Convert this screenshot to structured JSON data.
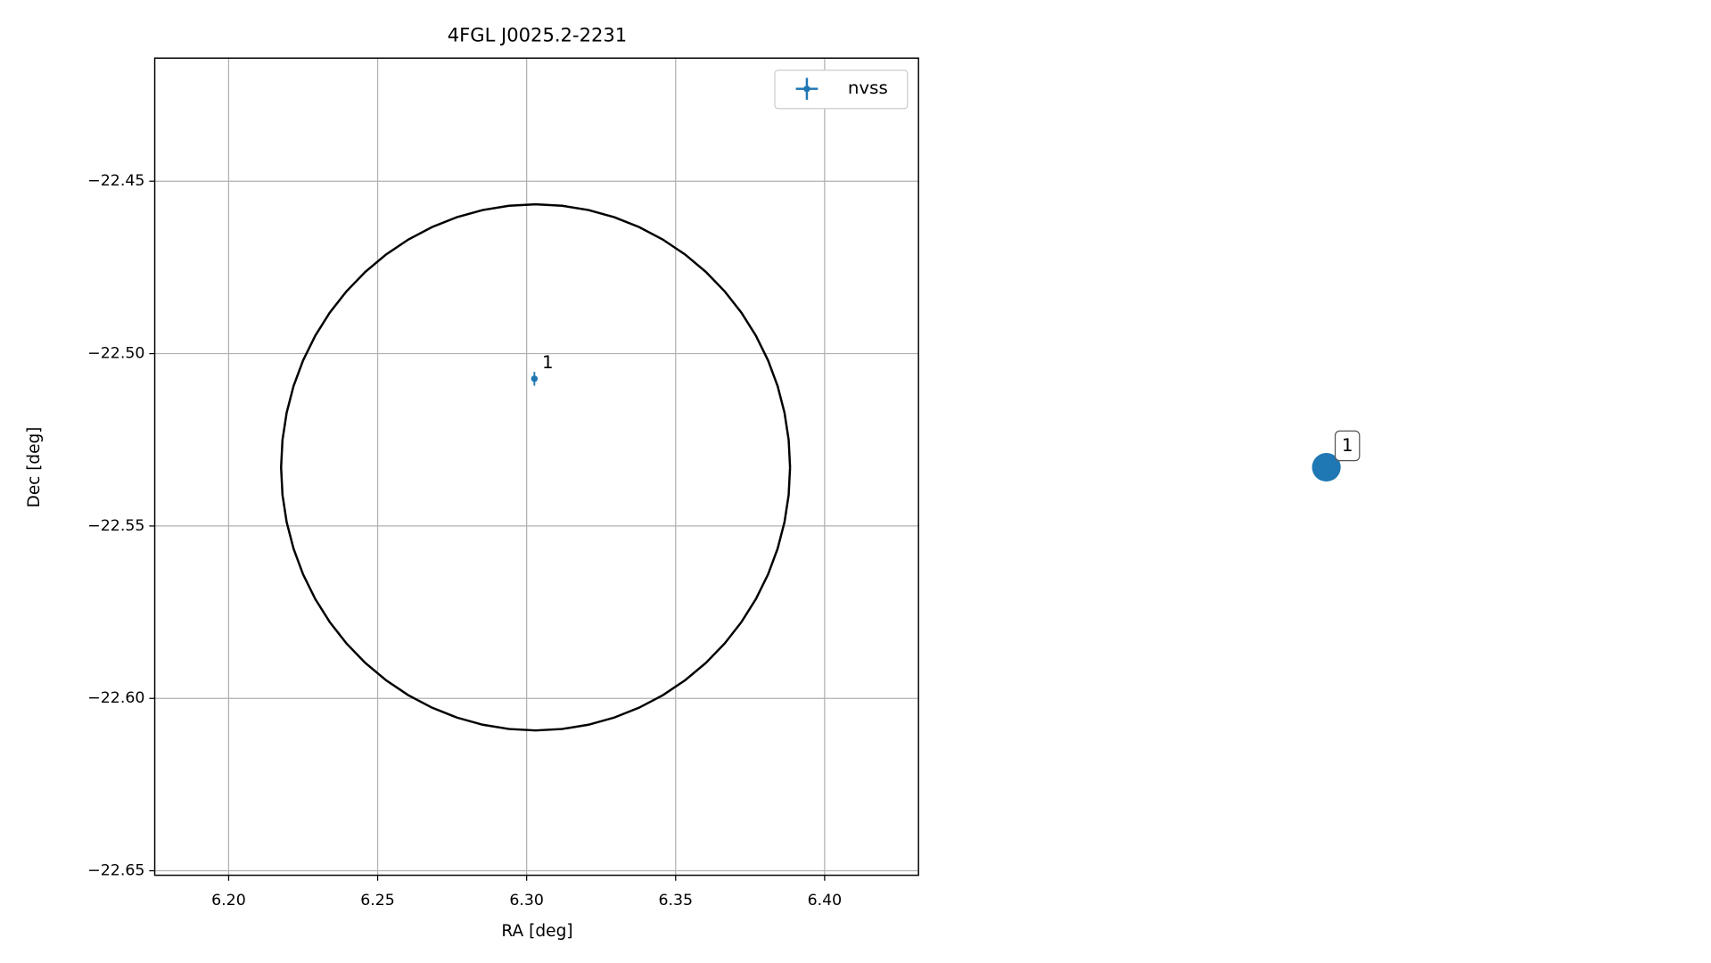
{
  "chart_data": {
    "type": "scatter",
    "title": "4FGL J0025.2-2231",
    "xlabel": "RA [deg]",
    "ylabel": "Dec [deg]",
    "series": [
      {
        "name": "nvss",
        "color": "#1f77b4",
        "x": [
          6.3026
        ],
        "values": [
          -22.5073
        ],
        "xerr": [
          0.001
        ],
        "yerr": [
          0.002
        ],
        "point_labels": [
          "1"
        ]
      }
    ],
    "ellipse": {
      "center": [
        6.303,
        -22.533
      ],
      "ra_radius": 0.0854,
      "dec_radius": 0.0763,
      "color": "#000000"
    },
    "xlim": [
      6.1752,
      6.4315
    ],
    "ylim": [
      -22.6513,
      -22.4143
    ],
    "xticks": [
      {
        "value": 6.2,
        "label": "6.20"
      },
      {
        "value": 6.25,
        "label": "6.25"
      },
      {
        "value": 6.3,
        "label": "6.30"
      },
      {
        "value": 6.35,
        "label": "6.35"
      },
      {
        "value": 6.4,
        "label": "6.40"
      }
    ],
    "yticks": [
      {
        "value": -22.45,
        "label": "−22.45"
      },
      {
        "value": -22.5,
        "label": "−22.50"
      },
      {
        "value": -22.55,
        "label": "−22.55"
      },
      {
        "value": -22.6,
        "label": "−22.60"
      },
      {
        "value": -22.65,
        "label": "−22.65"
      }
    ],
    "grid": true,
    "legend": "upper right"
  },
  "side_marker": {
    "label": "1",
    "color": "#1f77b4"
  }
}
